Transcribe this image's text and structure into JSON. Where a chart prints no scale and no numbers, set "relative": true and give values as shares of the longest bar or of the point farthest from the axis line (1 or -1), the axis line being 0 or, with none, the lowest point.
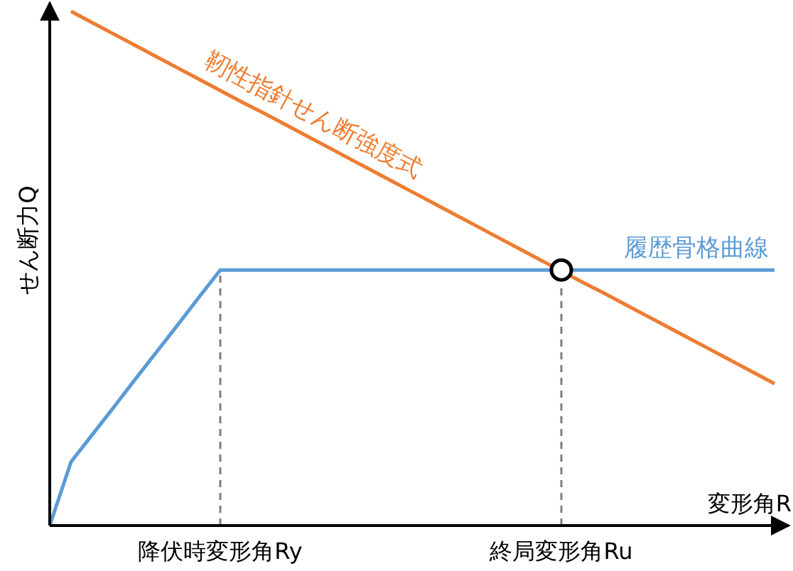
{
  "chart_data": {
    "type": "line",
    "relative": true,
    "ylabel": "せん断力Q",
    "xlabel": "変形角R",
    "categories": [
      null,
      null,
      null,
      null,
      null,
      null,
      null,
      null,
      "降伏時変形角Ry",
      null,
      null,
      null,
      null,
      null,
      null,
      null,
      null,
      null,
      null,
      null,
      null,
      null,
      null,
      null,
      "終局変形角Ru",
      null,
      null,
      null,
      null,
      null,
      null,
      null,
      null,
      null,
      null
    ],
    "tick_labels": "x",
    "series": [
      {
        "name": "靭性指針せん断強度式",
        "color": "#ed7d31",
        "values": [
          null,
          1,
          0.978,
          0.956,
          0.934,
          0.912,
          0.89,
          0.868,
          0.846,
          0.824,
          0.803,
          0.781,
          0.759,
          0.737,
          0.715,
          0.693,
          0.671,
          0.649,
          0.627,
          0.605,
          0.583,
          0.561,
          0.539,
          0.517,
          0.495,
          0.473,
          0.452,
          0.43,
          0.408,
          0.386,
          0.364,
          0.342,
          0.32,
          0.298,
          0.276
        ]
      },
      {
        "name": "履歴骨格曲線",
        "color": "#5b9bd5",
        "values": [
          0,
          0.124,
          0.177,
          0.23,
          0.284,
          0.337,
          0.39,
          0.444,
          0.497,
          0.497,
          0.497,
          0.497,
          0.497,
          0.497,
          0.497,
          0.497,
          0.497,
          0.497,
          0.497,
          0.497,
          0.497,
          0.497,
          0.497,
          0.497,
          0.497,
          0.497,
          0.497,
          0.497,
          0.497,
          0.497,
          0.497,
          0.497,
          0.497,
          0.497,
          0.497
        ]
      },
      {
        "type": "scatter",
        "marker": "circle",
        "color": "#000000",
        "values": [
          null,
          null,
          null,
          null,
          null,
          null,
          null,
          null,
          null,
          null,
          null,
          null,
          null,
          null,
          null,
          null,
          null,
          null,
          null,
          null,
          null,
          null,
          null,
          null,
          0.497,
          null,
          null,
          null,
          null,
          null,
          null,
          null,
          null,
          null,
          null
        ]
      }
    ],
    "ref_lines": [
      {
        "axis": "x",
        "value": "降伏時変形角Ry",
        "color": "#7f7f7f",
        "line_style": "dashed"
      },
      {
        "axis": "x",
        "value": "終局変形角Ru",
        "color": "#7f7f7f",
        "line_style": "dashed"
      }
    ]
  }
}
